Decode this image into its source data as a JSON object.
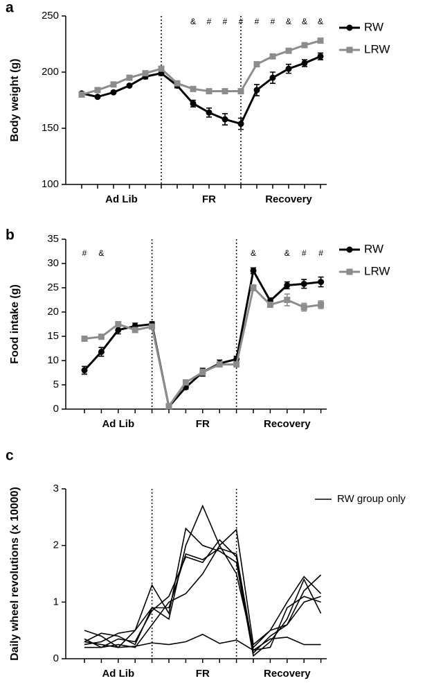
{
  "chart_data": [
    {
      "type": "line",
      "panel_label": "a",
      "ylabel": "Body weight (g)",
      "ylim": [
        100,
        250
      ],
      "yticks": [
        100,
        150,
        200,
        250
      ],
      "categories": [
        null,
        null,
        null,
        null,
        null,
        null,
        null,
        null,
        null,
        null,
        null,
        null,
        null,
        null,
        null,
        null
      ],
      "groups": [
        {
          "label": "Ad Lib",
          "count": 6
        },
        {
          "label": "FR",
          "count": 5
        },
        {
          "label": "Recovery",
          "count": 5
        }
      ],
      "point_labels": [
        null,
        null,
        null,
        null,
        null,
        null,
        null,
        "&",
        "#",
        "#",
        "#",
        "#",
        "#",
        "&",
        "&",
        "&"
      ],
      "series": [
        {
          "name": "RW",
          "color": "#000000",
          "marker": "circle",
          "values": [
            181,
            178,
            182,
            188,
            196,
            199,
            188,
            172,
            164,
            158,
            154,
            184,
            195,
            203,
            208,
            214
          ],
          "errors": [
            1,
            1,
            1,
            1,
            2,
            2,
            2,
            3,
            4,
            5,
            5,
            5,
            5,
            4,
            3,
            3
          ]
        },
        {
          "name": "LRW",
          "color": "#8c8c8c",
          "marker": "square",
          "values": [
            180,
            184,
            189,
            195,
            199,
            203,
            190,
            185,
            183,
            183,
            183,
            207,
            214,
            219,
            224,
            228
          ],
          "errors": [
            1,
            1,
            1,
            1,
            1,
            1,
            1,
            1,
            1,
            1,
            1,
            1,
            1,
            1,
            1,
            2
          ]
        }
      ]
    },
    {
      "type": "line",
      "panel_label": "b",
      "ylabel": "Food intake (g)",
      "ylim": [
        0,
        35
      ],
      "yticks": [
        0,
        5,
        10,
        15,
        20,
        25,
        30,
        35
      ],
      "categories": [
        null,
        null,
        null,
        null,
        null,
        null,
        null,
        null,
        null,
        null,
        null,
        null,
        null,
        null,
        null
      ],
      "groups": [
        {
          "label": "Ad Lib",
          "count": 5
        },
        {
          "label": "FR",
          "count": 5
        },
        {
          "label": "Recovery",
          "count": 5
        }
      ],
      "point_labels": [
        "#",
        "&",
        null,
        null,
        null,
        null,
        null,
        null,
        null,
        null,
        "&",
        null,
        "&",
        "#",
        "#"
      ],
      "series": [
        {
          "name": "RW",
          "color": "#000000",
          "marker": "circle",
          "values": [
            8,
            11.8,
            16.3,
            17.1,
            17.5,
            0.5,
            4.5,
            7.6,
            9.4,
            10.3,
            28.5,
            22.3,
            25.5,
            25.8,
            26.2
          ],
          "errors": [
            0.8,
            0.9,
            0.8,
            0.6,
            0.5,
            0.2,
            0.4,
            0.8,
            0.7,
            0.6,
            0.6,
            0.6,
            0.7,
            0.9,
            1.0
          ]
        },
        {
          "name": "LRW",
          "color": "#8c8c8c",
          "marker": "square",
          "values": [
            14.5,
            14.9,
            17.5,
            16.3,
            17,
            0.6,
            5.5,
            7.6,
            9.2,
            9.2,
            25,
            21.5,
            22.5,
            21,
            21.5
          ],
          "errors": [
            0.4,
            0.5,
            0.4,
            0.5,
            0.4,
            0.2,
            0.5,
            0.6,
            0.5,
            0.5,
            0.6,
            0.5,
            1.2,
            0.8,
            0.8
          ]
        }
      ]
    },
    {
      "type": "line",
      "panel_label": "c",
      "ylabel": "Daily wheel revolutions (x 10000)",
      "ylim": [
        0,
        3
      ],
      "yticks": [
        0,
        1,
        2,
        3
      ],
      "legend": "RW group only",
      "categories": [
        null,
        null,
        null,
        null,
        null,
        null,
        null,
        null,
        null,
        null,
        null,
        null,
        null,
        null,
        null
      ],
      "groups": [
        {
          "label": "Ad Lib",
          "count": 5
        },
        {
          "label": "FR",
          "count": 5
        },
        {
          "label": "Recovery",
          "count": 5
        }
      ],
      "series": [
        {
          "color": "#000000",
          "values": [
            0.3,
            0.25,
            0.2,
            0.22,
            0.28,
            0.25,
            0.3,
            0.43,
            0.27,
            0.33,
            0.15,
            0.35,
            0.38,
            0.25,
            0.25
          ]
        },
        {
          "color": "#000000",
          "values": [
            0.5,
            0.4,
            0.2,
            0.5,
            0.9,
            0.7,
            2.0,
            2.7,
            2.0,
            1.5,
            0.2,
            0.5,
            1.0,
            1.45,
            1.15
          ]
        },
        {
          "color": "#000000",
          "values": [
            0.25,
            0.3,
            0.45,
            0.5,
            1.3,
            0.8,
            2.3,
            2.0,
            1.9,
            1.7,
            0.05,
            0.3,
            0.7,
            1.4,
            0.8
          ]
        },
        {
          "color": "#000000",
          "values": [
            0.2,
            0.2,
            0.35,
            0.3,
            0.85,
            1.1,
            1.8,
            1.7,
            2.1,
            1.8,
            0.1,
            0.4,
            0.6,
            1.2,
            1.48
          ]
        },
        {
          "color": "#000000",
          "values": [
            0.35,
            0.2,
            0.25,
            0.2,
            0.6,
            1.0,
            1.15,
            1.5,
            2.0,
            2.28,
            0.25,
            0.5,
            0.6,
            1.0,
            1.1
          ]
        },
        {
          "color": "#000000",
          "values": [
            0.3,
            0.45,
            0.4,
            0.25,
            0.9,
            0.9,
            1.85,
            1.75,
            1.95,
            1.85,
            0.15,
            0.2,
            0.9,
            1.1,
            1.0
          ]
        }
      ]
    }
  ]
}
